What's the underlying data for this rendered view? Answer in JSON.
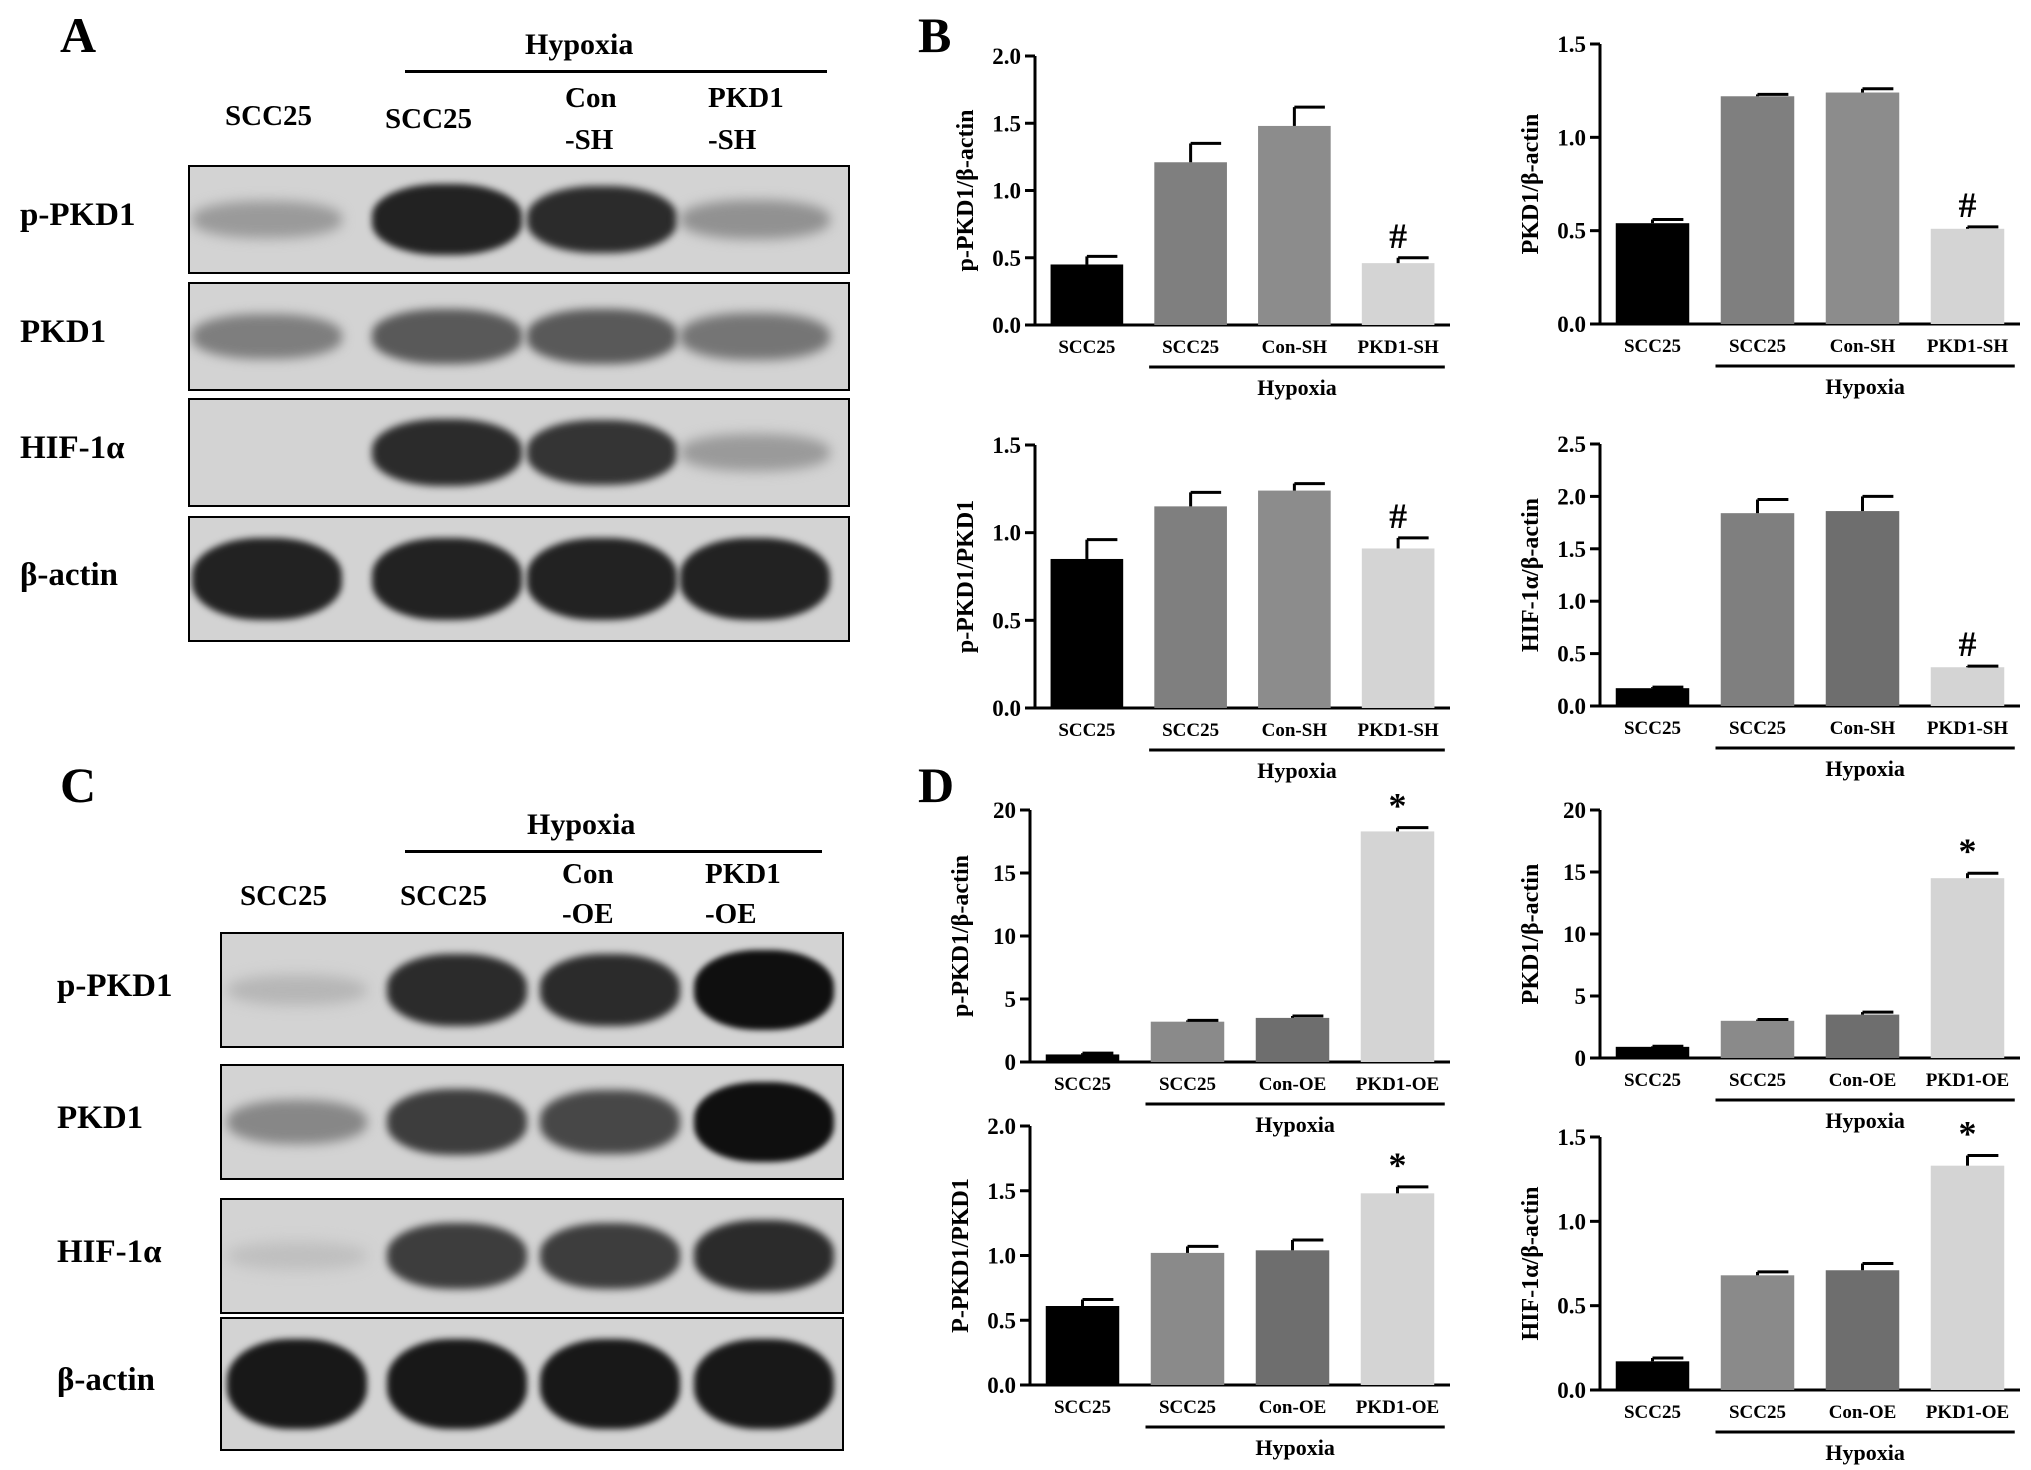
{
  "panels": {
    "A": {
      "letter": "A",
      "group_label": "Hypoxia",
      "lanes": [
        {
          "lines": [
            "SCC25"
          ]
        },
        {
          "lines": [
            "SCC25"
          ]
        },
        {
          "lines": [
            "Con",
            "-SH"
          ]
        },
        {
          "lines": [
            "PKD1",
            "-SH"
          ]
        }
      ],
      "rows": [
        {
          "label": "p-PKD1",
          "intensity": [
            0.25,
            0.9,
            0.85,
            0.3
          ]
        },
        {
          "label": "PKD1",
          "intensity": [
            0.4,
            0.6,
            0.6,
            0.45
          ]
        },
        {
          "label": "HIF-1α",
          "intensity": [
            0.0,
            0.85,
            0.8,
            0.25
          ]
        },
        {
          "label": "β-actin",
          "intensity": [
            0.9,
            0.9,
            0.9,
            0.9
          ]
        }
      ]
    },
    "B": {
      "letter": "B"
    },
    "C": {
      "letter": "C",
      "group_label": "Hypoxia",
      "lanes": [
        {
          "lines": [
            "SCC25"
          ]
        },
        {
          "lines": [
            "SCC25"
          ]
        },
        {
          "lines": [
            "Con",
            "-OE"
          ]
        },
        {
          "lines": [
            "PKD1",
            "-OE"
          ]
        }
      ],
      "rows": [
        {
          "label": "p-PKD1",
          "intensity": [
            0.1,
            0.85,
            0.85,
            1.0
          ]
        },
        {
          "label": "PKD1",
          "intensity": [
            0.35,
            0.75,
            0.7,
            1.0
          ]
        },
        {
          "label": "HIF-1α",
          "intensity": [
            0.05,
            0.75,
            0.75,
            0.85
          ]
        },
        {
          "label": "β-actin",
          "intensity": [
            0.95,
            0.95,
            0.95,
            0.95
          ]
        }
      ]
    },
    "D": {
      "letter": "D"
    }
  },
  "chart_data": [
    {
      "id": "B1",
      "type": "bar",
      "ylabel": "p-PKD1/β-actin",
      "categories": [
        "SCC25",
        "SCC25",
        "Con-SH",
        "PKD1-SH"
      ],
      "values": [
        0.45,
        1.21,
        1.48,
        0.46
      ],
      "errors": [
        0.06,
        0.14,
        0.14,
        0.04
      ],
      "ylim": [
        0,
        2.0
      ],
      "ticks": [
        0.0,
        0.5,
        1.0,
        1.5,
        2.0
      ],
      "tick_labels": [
        "0.0",
        "0.5",
        "1.0",
        "1.5",
        "2.0"
      ],
      "marks": [
        "",
        "",
        "",
        "#"
      ],
      "group_label": "Hypoxia",
      "colors": [
        "#000000",
        "#7f7f7f",
        "#8c8c8c",
        "#d4d4d4"
      ]
    },
    {
      "id": "B2",
      "type": "bar",
      "ylabel": "PKD1/β-actin",
      "categories": [
        "SCC25",
        "SCC25",
        "Con-SH",
        "PKD1-SH"
      ],
      "values": [
        0.54,
        1.22,
        1.24,
        0.51
      ],
      "errors": [
        0.02,
        0.01,
        0.02,
        0.01
      ],
      "ylim": [
        0,
        1.5
      ],
      "ticks": [
        0.0,
        0.5,
        1.0,
        1.5
      ],
      "tick_labels": [
        "0.0",
        "0.5",
        "1.0",
        "1.5"
      ],
      "marks": [
        "",
        "",
        "",
        "#"
      ],
      "group_label": "Hypoxia",
      "colors": [
        "#000000",
        "#7f7f7f",
        "#8c8c8c",
        "#d4d4d4"
      ]
    },
    {
      "id": "B3",
      "type": "bar",
      "ylabel": "p-PKD1/PKD1",
      "categories": [
        "SCC25",
        "SCC25",
        "Con-SH",
        "PKD1-SH"
      ],
      "values": [
        0.85,
        1.15,
        1.24,
        0.91
      ],
      "errors": [
        0.11,
        0.08,
        0.04,
        0.06
      ],
      "ylim": [
        0,
        1.5
      ],
      "ticks": [
        0.0,
        0.5,
        1.0,
        1.5
      ],
      "tick_labels": [
        "0.0",
        "0.5",
        "1.0",
        "1.5"
      ],
      "marks": [
        "",
        "",
        "",
        "#"
      ],
      "group_label": "Hypoxia",
      "colors": [
        "#000000",
        "#7f7f7f",
        "#8c8c8c",
        "#d4d4d4"
      ]
    },
    {
      "id": "B4",
      "type": "bar",
      "ylabel": "HIF-1α/β-actin",
      "categories": [
        "SCC25",
        "SCC25",
        "Con-SH",
        "PKD1-SH"
      ],
      "values": [
        0.17,
        1.84,
        1.86,
        0.37
      ],
      "errors": [
        0.01,
        0.13,
        0.14,
        0.01
      ],
      "ylim": [
        0,
        2.5
      ],
      "ticks": [
        0.0,
        0.5,
        1.0,
        1.5,
        2.0,
        2.5
      ],
      "tick_labels": [
        "0.0",
        "0.5",
        "1.0",
        "1.5",
        "2.0",
        "2.5"
      ],
      "marks": [
        "",
        "",
        "",
        "#"
      ],
      "group_label": "Hypoxia",
      "colors": [
        "#000000",
        "#7f7f7f",
        "#6e6e6e",
        "#d4d4d4"
      ]
    },
    {
      "id": "D1",
      "type": "bar",
      "ylabel": "p-PKD1/β-actin",
      "categories": [
        "SCC25",
        "SCC25",
        "Con-OE",
        "PKD1-OE"
      ],
      "values": [
        0.6,
        3.2,
        3.5,
        18.3
      ],
      "errors": [
        0.1,
        0.1,
        0.15,
        0.3
      ],
      "ylim": [
        0,
        20
      ],
      "ticks": [
        0,
        5,
        10,
        15,
        20
      ],
      "tick_labels": [
        "0",
        "5",
        "10",
        "15",
        "20"
      ],
      "marks": [
        "",
        "",
        "",
        "*"
      ],
      "group_label": "Hypoxia",
      "colors": [
        "#000000",
        "#8a8a8a",
        "#6e6e6e",
        "#d4d4d4"
      ]
    },
    {
      "id": "D2",
      "type": "bar",
      "ylabel": "PKD1/β-actin",
      "categories": [
        "SCC25",
        "SCC25",
        "Con-OE",
        "PKD1-OE"
      ],
      "values": [
        0.9,
        3.0,
        3.5,
        14.5
      ],
      "errors": [
        0.05,
        0.1,
        0.2,
        0.4
      ],
      "ylim": [
        0,
        20
      ],
      "ticks": [
        0,
        5,
        10,
        15,
        20
      ],
      "tick_labels": [
        "0",
        "5",
        "10",
        "15",
        "20"
      ],
      "marks": [
        "",
        "",
        "",
        "*"
      ],
      "group_label": "Hypoxia",
      "colors": [
        "#000000",
        "#8a8a8a",
        "#6e6e6e",
        "#d4d4d4"
      ]
    },
    {
      "id": "D3",
      "type": "bar",
      "ylabel": "P-PKD1/PKD1",
      "categories": [
        "SCC25",
        "SCC25",
        "Con-OE",
        "PKD1-OE"
      ],
      "values": [
        0.61,
        1.02,
        1.04,
        1.48
      ],
      "errors": [
        0.05,
        0.05,
        0.08,
        0.05
      ],
      "ylim": [
        0,
        2.0
      ],
      "ticks": [
        0.0,
        0.5,
        1.0,
        1.5,
        2.0
      ],
      "tick_labels": [
        "0.0",
        "0.5",
        "1.0",
        "1.5",
        "2.0"
      ],
      "marks": [
        "",
        "",
        "",
        "*"
      ],
      "group_label": "Hypoxia",
      "colors": [
        "#000000",
        "#8a8a8a",
        "#6e6e6e",
        "#d4d4d4"
      ]
    },
    {
      "id": "D4",
      "type": "bar",
      "ylabel": "HIF-1α/β-actin",
      "categories": [
        "SCC25",
        "SCC25",
        "Con-OE",
        "PKD1-OE"
      ],
      "values": [
        0.17,
        0.68,
        0.71,
        1.33
      ],
      "errors": [
        0.02,
        0.02,
        0.04,
        0.06
      ],
      "ylim": [
        0,
        1.5
      ],
      "ticks": [
        0.0,
        0.5,
        1.0,
        1.5
      ],
      "tick_labels": [
        "0.0",
        "0.5",
        "1.0",
        "1.5"
      ],
      "marks": [
        "",
        "",
        "",
        "*"
      ],
      "group_label": "Hypoxia",
      "colors": [
        "#000000",
        "#8a8a8a",
        "#6e6e6e",
        "#d4d4d4"
      ]
    }
  ]
}
